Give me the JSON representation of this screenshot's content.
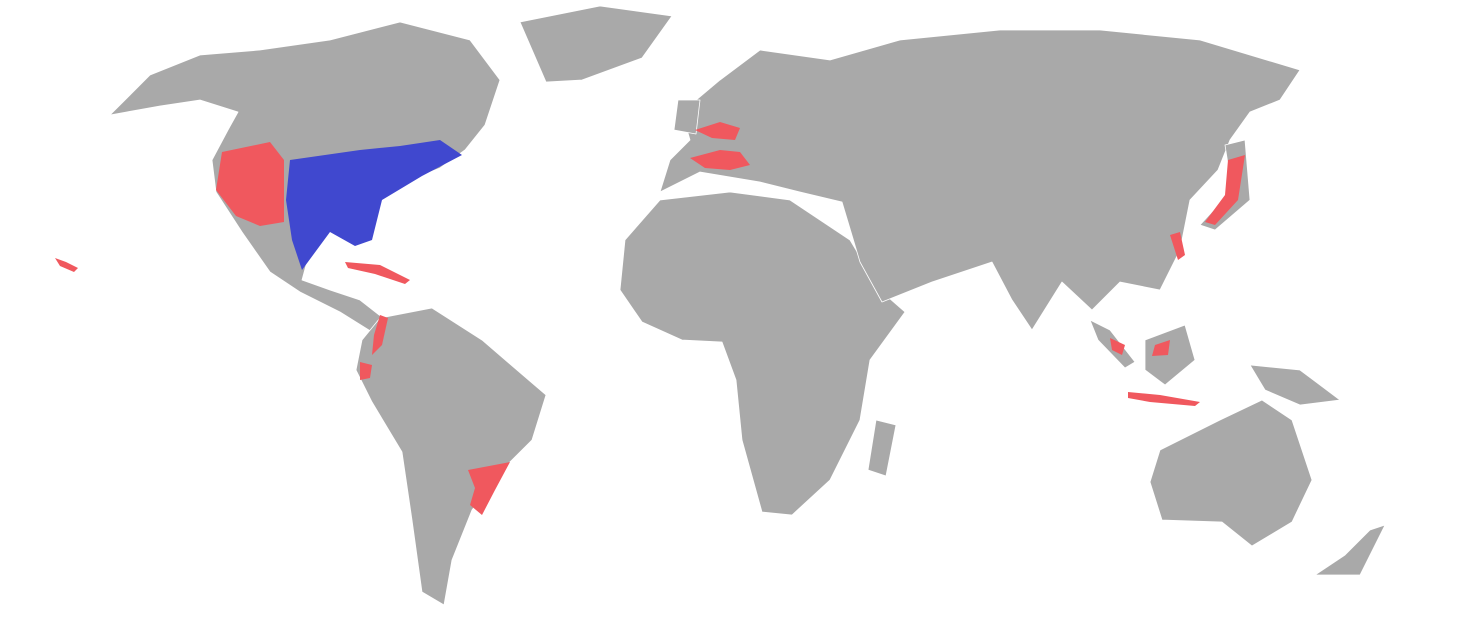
{
  "map": {
    "colors": {
      "background": "#ffffff",
      "land": "#a9a9a9",
      "borders": "#ffffff",
      "native_range": "#4048cf",
      "introduced_range": "#f0585e"
    }
  }
}
